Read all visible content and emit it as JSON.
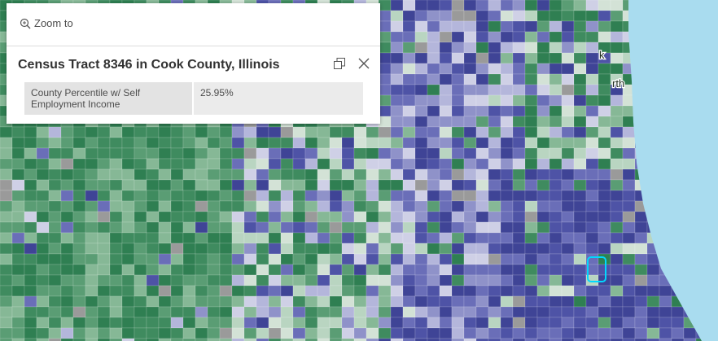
{
  "map": {
    "labels": [
      "k",
      "rth"
    ]
  },
  "popup": {
    "zoom": "Zoom to",
    "title": "Census Tract 8346 in Cook County, Illinois",
    "table": {
      "rows": [
        [
          "County Percentile w/ Self Employment Income",
          "25.95%"
        ]
      ]
    }
  }
}
